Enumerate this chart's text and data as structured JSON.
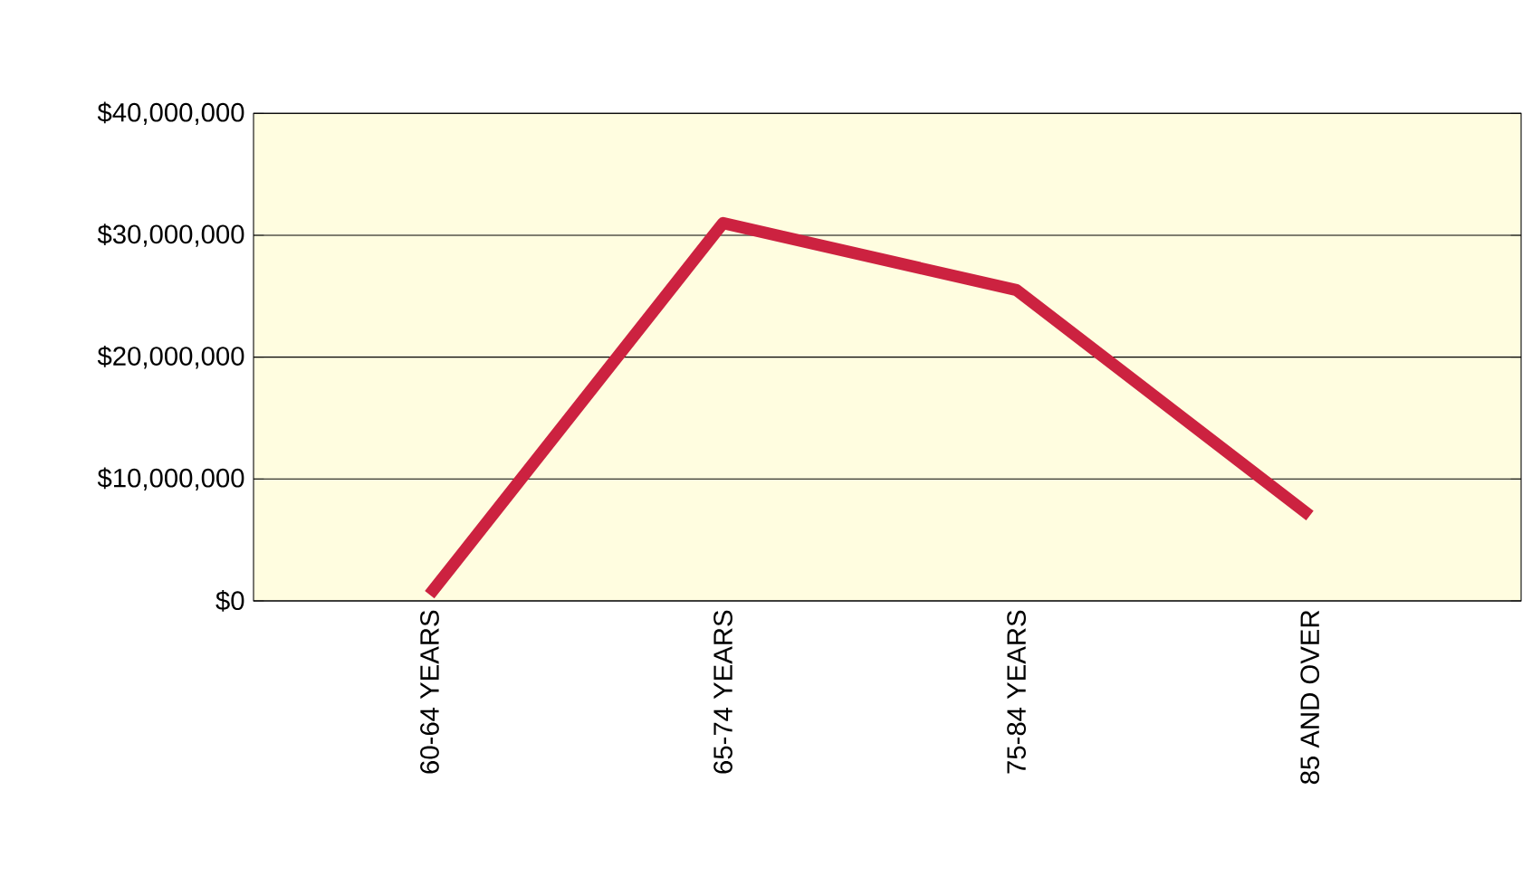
{
  "chart_data": {
    "type": "line",
    "categories": [
      "60-64 YEARS",
      "65-74 YEARS",
      "75-84 YEARS",
      "85 AND OVER"
    ],
    "series": [
      {
        "color": "#cc2240",
        "values": [
          500000,
          31000000,
          25500000,
          7000000
        ]
      }
    ],
    "ylim": [
      0,
      40000000
    ],
    "yticks": [
      {
        "value": 0,
        "label": "$0"
      },
      {
        "value": 10000000,
        "label": "$10,000,000"
      },
      {
        "value": 20000000,
        "label": "$20,000,000"
      },
      {
        "value": 30000000,
        "label": "$30,000,000"
      },
      {
        "value": 40000000,
        "label": "$40,000,000"
      }
    ],
    "grid": "y",
    "marker": "none",
    "line_style": "solid"
  }
}
